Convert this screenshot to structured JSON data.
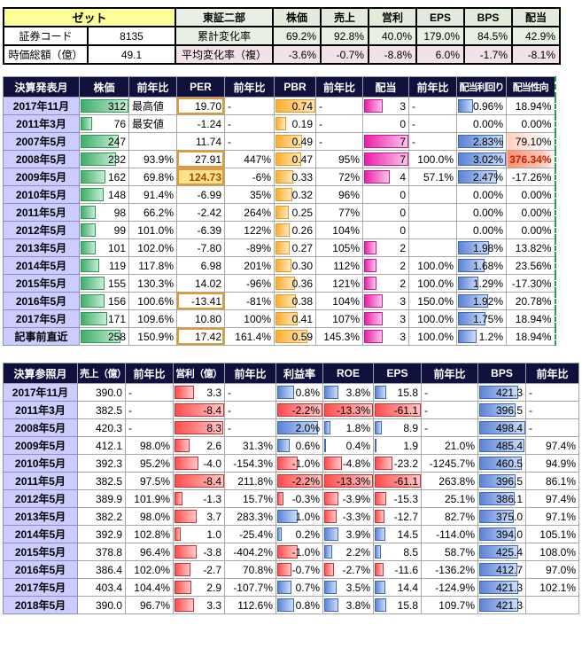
{
  "top_panel": {
    "company": "ゼット",
    "market": "東証二部",
    "code_label": "証券コード",
    "code": "8135",
    "mcap_label": "時価総額（億）",
    "mcap": "49.1",
    "cum_label": "累計変化率",
    "avg_label": "平均変化率（複）",
    "metric_headers": [
      "株価",
      "売上",
      "営利",
      "EPS",
      "BPS",
      "配当"
    ],
    "cumulative_change": [
      "69.2%",
      "92.8%",
      "40.0%",
      "179.0%",
      "84.5%",
      "42.9%"
    ],
    "average_change": [
      "-3.6%",
      "-0.7%",
      "-8.8%",
      "6.0%",
      "-1.7%",
      "-8.1%"
    ]
  },
  "announce_table": {
    "name": "announce",
    "headers": [
      "決算発表月",
      "株価",
      "前年比",
      "PER",
      "前年比",
      "PBR",
      "前年比",
      "配当",
      "前年比",
      "配当利回り",
      "配当性向"
    ],
    "cols": [
      {
        "key": "month",
        "type": "date"
      },
      {
        "key": "stock-price",
        "type": "bar",
        "color": "green",
        "max": 312
      },
      {
        "key": "price-yoy",
        "type": "text"
      },
      {
        "key": "per",
        "type": "per"
      },
      {
        "key": "per-yoy",
        "type": "text"
      },
      {
        "key": "pbr",
        "type": "bar",
        "color": "orange",
        "max": 0.74
      },
      {
        "key": "pbr-yoy",
        "type": "text"
      },
      {
        "key": "dividend",
        "type": "bar",
        "color": "magenta",
        "max": 7
      },
      {
        "key": "dividend-yoy",
        "type": "text"
      },
      {
        "key": "dividend-yield",
        "type": "bar",
        "color": "blue",
        "max": 3.02
      },
      {
        "key": "payout-ratio",
        "type": "payout"
      }
    ],
    "per_boxed": [
      0,
      3,
      11,
      13
    ],
    "per_filled": [
      4
    ],
    "rows": [
      [
        "2017年11月",
        "312",
        "最高値",
        "19.70",
        "-",
        "0.74",
        "-",
        "3",
        "-",
        "0.96%",
        "18.94%"
      ],
      [
        "2011年3月",
        "76",
        "最安値",
        "-1.24",
        "-",
        "0.19",
        "-",
        "0",
        "-",
        "0.00%",
        "0.00%"
      ],
      [
        "2007年5月",
        "247",
        "",
        "11.74",
        "-",
        "0.49",
        "-",
        "7",
        "-",
        "2.83%",
        "79.10%"
      ],
      [
        "2008年5月",
        "232",
        "93.9%",
        "27.91",
        "447%",
        "0.47",
        "95%",
        "7",
        "100.0%",
        "3.02%",
        "376.34%"
      ],
      [
        "2009年5月",
        "162",
        "69.8%",
        "124.73",
        "-6%",
        "0.33",
        "72%",
        "4",
        "57.1%",
        "2.47%",
        "-17.26%"
      ],
      [
        "2010年5月",
        "148",
        "91.4%",
        "-6.99",
        "35%",
        "0.32",
        "96%",
        "0",
        "",
        "0.00%",
        "0.00%"
      ],
      [
        "2011年5月",
        "98",
        "66.2%",
        "-2.42",
        "264%",
        "0.25",
        "77%",
        "0",
        "",
        "0.00%",
        "0.00%"
      ],
      [
        "2012年5月",
        "99",
        "101.0%",
        "-6.39",
        "122%",
        "0.26",
        "104%",
        "0",
        "",
        "0.00%",
        "0.00%"
      ],
      [
        "2013年5月",
        "101",
        "102.0%",
        "-7.80",
        "-89%",
        "0.27",
        "105%",
        "2",
        "",
        "1.98%",
        "13.82%"
      ],
      [
        "2014年5月",
        "119",
        "117.8%",
        "6.98",
        "201%",
        "0.30",
        "112%",
        "2",
        "100.0%",
        "1.68%",
        "23.56%"
      ],
      [
        "2015年5月",
        "155",
        "130.3%",
        "14.02",
        "-96%",
        "0.36",
        "121%",
        "2",
        "100.0%",
        "1.29%",
        "-17.30%"
      ],
      [
        "2016年5月",
        "156",
        "100.6%",
        "-13.41",
        "-81%",
        "0.38",
        "104%",
        "3",
        "150.0%",
        "1.92%",
        "20.78%"
      ],
      [
        "2017年5月",
        "171",
        "109.6%",
        "10.80",
        "100%",
        "0.41",
        "107%",
        "3",
        "100.0%",
        "1.75%",
        "18.94%"
      ],
      [
        "記事前直近",
        "258",
        "150.9%",
        "17.42",
        "161.4%",
        "0.59",
        "145.3%",
        "3",
        "100.0%",
        "1.2%",
        "18.94%"
      ]
    ]
  },
  "reference_table": {
    "name": "reference",
    "headers": [
      "決算参照月",
      "売上（億）",
      "前年比",
      "営利（億）",
      "前年比",
      "利益率",
      "ROE",
      "EPS",
      "前年比",
      "BPS",
      "前年比"
    ],
    "cols": [
      {
        "key": "month",
        "type": "date"
      },
      {
        "key": "sales",
        "type": "num"
      },
      {
        "key": "sales-yoy",
        "type": "text"
      },
      {
        "key": "op-profit",
        "type": "bar",
        "color": "red",
        "max": 8.4
      },
      {
        "key": "op-yoy",
        "type": "text"
      },
      {
        "key": "margin",
        "type": "sbar",
        "max": 2.2
      },
      {
        "key": "roe",
        "type": "sbar",
        "max": 13.3
      },
      {
        "key": "eps",
        "type": "sbar",
        "max": 61.1
      },
      {
        "key": "eps-yoy",
        "type": "text"
      },
      {
        "key": "bps",
        "type": "sbar",
        "max": 498.4
      },
      {
        "key": "bps-yoy",
        "type": "text"
      }
    ],
    "rows": [
      [
        "2017年11月",
        "390.0",
        "-",
        "3.3",
        "-",
        "0.8%",
        "3.8%",
        "15.8",
        "-",
        "421.3",
        "-"
      ],
      [
        "2011年3月",
        "382.5",
        "-",
        "-8.4",
        "-",
        "-2.2%",
        "-13.3%",
        "-61.1",
        "-",
        "396.5",
        "-"
      ],
      [
        "2008年5月",
        "420.3",
        "-",
        "8.3",
        "-",
        "2.0%",
        "1.8%",
        "8.9",
        "-",
        "498.4",
        "-"
      ],
      [
        "2009年5月",
        "412.1",
        "98.0%",
        "2.6",
        "31.3%",
        "0.6%",
        "0.4%",
        "1.9",
        "21.0%",
        "485.4",
        "97.4%"
      ],
      [
        "2010年5月",
        "392.3",
        "95.2%",
        "-4.0",
        "-154.3%",
        "-1.0%",
        "-4.8%",
        "-23.2",
        "-1245.7%",
        "460.5",
        "94.9%"
      ],
      [
        "2011年5月",
        "382.5",
        "97.5%",
        "-8.4",
        "211.8%",
        "-2.2%",
        "-13.3%",
        "-61.1",
        "263.8%",
        "396.5",
        "86.1%"
      ],
      [
        "2012年5月",
        "389.9",
        "101.9%",
        "-1.3",
        "15.7%",
        "-0.3%",
        "-3.9%",
        "-15.3",
        "25.1%",
        "386.1",
        "97.4%"
      ],
      [
        "2013年5月",
        "382.2",
        "98.0%",
        "3.7",
        "283.3%",
        "1.0%",
        "-3.3%",
        "-12.7",
        "82.7%",
        "375.0",
        "97.1%"
      ],
      [
        "2014年5月",
        "392.9",
        "102.8%",
        "1.0",
        "-25.4%",
        "0.2%",
        "3.9%",
        "14.5",
        "-114.0%",
        "394.0",
        "105.1%"
      ],
      [
        "2015年5月",
        "378.8",
        "96.4%",
        "-3.8",
        "-404.2%",
        "-1.0%",
        "2.2%",
        "8.5",
        "58.7%",
        "425.4",
        "108.0%"
      ],
      [
        "2016年5月",
        "386.4",
        "102.0%",
        "-2.7",
        "70.8%",
        "-0.7%",
        "-2.7%",
        "-11.6",
        "-136.2%",
        "412.7",
        "97.0%"
      ],
      [
        "2017年5月",
        "403.4",
        "104.4%",
        "2.9",
        "-107.7%",
        "0.7%",
        "3.5%",
        "14.4",
        "-124.9%",
        "421.3",
        "102.1%"
      ],
      [
        "2018年5月",
        "390.0",
        "96.7%",
        "3.3",
        "112.6%",
        "0.8%",
        "3.8%",
        "15.8",
        "109.7%",
        "421.3",
        ""
      ]
    ]
  },
  "colors": {
    "header_bg": "#10103c",
    "date_col_bg": "#ccccff",
    "company_bg": "#ffff99",
    "bar_green": "#3fae6a",
    "bar_orange": "#ffaf2e",
    "bar_magenta": "#ea1fa8",
    "bar_blue": "#5b84d6",
    "bar_red": "#ff4d4d"
  }
}
